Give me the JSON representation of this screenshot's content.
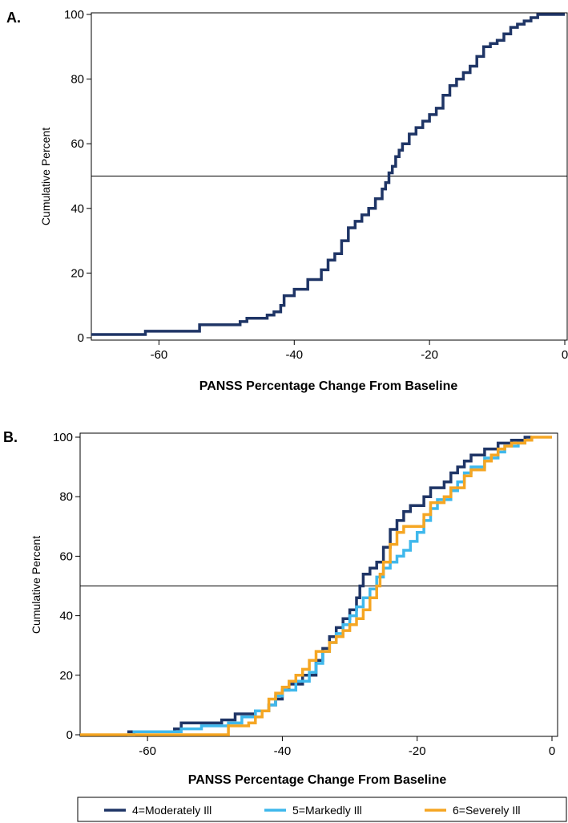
{
  "chart_data": [
    {
      "panel_label": "A.",
      "type": "line",
      "step": true,
      "xlabel": "PANSS Percentage Change From Baseline",
      "ylabel": "Cumulative Percent",
      "xlim": [
        -70,
        0
      ],
      "ylim": [
        0,
        100
      ],
      "xticks": [
        "-60",
        "-40",
        "-20",
        "0"
      ],
      "yticks": [
        "0",
        "20",
        "40",
        "60",
        "80",
        "100"
      ],
      "reference_line": 50,
      "grid": false,
      "series": [
        {
          "name": "",
          "color": "#1f3566",
          "points": [
            [
              -70,
              1
            ],
            [
              -62,
              1
            ],
            [
              -62,
              2
            ],
            [
              -55,
              2
            ],
            [
              -54,
              4
            ],
            [
              -50,
              4
            ],
            [
              -48,
              5
            ],
            [
              -47,
              6
            ],
            [
              -44,
              7
            ],
            [
              -43,
              8
            ],
            [
              -42,
              10
            ],
            [
              -41.5,
              13
            ],
            [
              -40,
              15
            ],
            [
              -38,
              18
            ],
            [
              -36,
              21
            ],
            [
              -35,
              24
            ],
            [
              -34,
              26
            ],
            [
              -33,
              30
            ],
            [
              -32,
              34
            ],
            [
              -31,
              36
            ],
            [
              -30,
              38
            ],
            [
              -29,
              40
            ],
            [
              -28,
              43
            ],
            [
              -27,
              46
            ],
            [
              -26.5,
              48
            ],
            [
              -26,
              51
            ],
            [
              -25.5,
              53
            ],
            [
              -25,
              56
            ],
            [
              -24.5,
              58
            ],
            [
              -24,
              60
            ],
            [
              -23,
              63
            ],
            [
              -22,
              65
            ],
            [
              -21,
              67
            ],
            [
              -20,
              69
            ],
            [
              -19,
              71
            ],
            [
              -18,
              75
            ],
            [
              -17,
              78
            ],
            [
              -16,
              80
            ],
            [
              -15,
              82
            ],
            [
              -14,
              84
            ],
            [
              -13,
              87
            ],
            [
              -12,
              90
            ],
            [
              -11,
              91
            ],
            [
              -10,
              92
            ],
            [
              -9,
              94
            ],
            [
              -8,
              96
            ],
            [
              -7,
              97
            ],
            [
              -6,
              98
            ],
            [
              -5,
              99
            ],
            [
              -4,
              100
            ],
            [
              0,
              100
            ]
          ]
        }
      ]
    },
    {
      "panel_label": "B.",
      "type": "line",
      "step": true,
      "xlabel": "PANSS Percentage Change From Baseline",
      "ylabel": "Cumulative Percent",
      "xlim": [
        -70,
        1
      ],
      "ylim": [
        0,
        100
      ],
      "xticks": [
        "-60",
        "-40",
        "-20",
        "0"
      ],
      "yticks": [
        "0",
        "20",
        "40",
        "60",
        "80",
        "100"
      ],
      "reference_line": 50,
      "grid": false,
      "legend": "bottom",
      "series": [
        {
          "name": "4=Moderately Ill",
          "color": "#1f3566",
          "points": [
            [
              -63,
              1
            ],
            [
              -56,
              2
            ],
            [
              -55,
              4
            ],
            [
              -50,
              4
            ],
            [
              -49,
              5
            ],
            [
              -47,
              7
            ],
            [
              -44,
              8
            ],
            [
              -42,
              10
            ],
            [
              -41,
              12
            ],
            [
              -40,
              15
            ],
            [
              -39,
              17
            ],
            [
              -37,
              20
            ],
            [
              -35,
              25
            ],
            [
              -34,
              29
            ],
            [
              -33,
              33
            ],
            [
              -32,
              36
            ],
            [
              -31,
              39
            ],
            [
              -30,
              42
            ],
            [
              -29,
              46
            ],
            [
              -28.5,
              50
            ],
            [
              -28,
              54
            ],
            [
              -27,
              56
            ],
            [
              -26,
              58
            ],
            [
              -25,
              63
            ],
            [
              -24,
              69
            ],
            [
              -23,
              72
            ],
            [
              -22,
              75
            ],
            [
              -21,
              77
            ],
            [
              -19,
              80
            ],
            [
              -18,
              83
            ],
            [
              -16,
              85
            ],
            [
              -15,
              88
            ],
            [
              -14,
              90
            ],
            [
              -13,
              92
            ],
            [
              -12,
              94
            ],
            [
              -10,
              96
            ],
            [
              -8,
              98
            ],
            [
              -6,
              99
            ],
            [
              -4,
              100
            ],
            [
              -3,
              100
            ]
          ]
        },
        {
          "name": "5=Markedly Ill",
          "color": "#3fb8ec",
          "points": [
            [
              -63,
              0
            ],
            [
              -62,
              1
            ],
            [
              -55,
              2
            ],
            [
              -52,
              3
            ],
            [
              -48,
              4
            ],
            [
              -46,
              6
            ],
            [
              -44,
              8
            ],
            [
              -42,
              10
            ],
            [
              -41,
              13
            ],
            [
              -40,
              15
            ],
            [
              -38,
              18
            ],
            [
              -36,
              21
            ],
            [
              -35,
              24
            ],
            [
              -34,
              28
            ],
            [
              -33,
              31
            ],
            [
              -32,
              34
            ],
            [
              -31,
              37
            ],
            [
              -30,
              40
            ],
            [
              -29,
              43
            ],
            [
              -28,
              46
            ],
            [
              -27,
              49
            ],
            [
              -26,
              53
            ],
            [
              -25,
              56
            ],
            [
              -24,
              58
            ],
            [
              -23,
              60
            ],
            [
              -22,
              62
            ],
            [
              -21,
              65
            ],
            [
              -20,
              68
            ],
            [
              -19,
              72
            ],
            [
              -18,
              76
            ],
            [
              -17,
              79
            ],
            [
              -15,
              82
            ],
            [
              -14,
              85
            ],
            [
              -13,
              88
            ],
            [
              -12,
              90
            ],
            [
              -10,
              93
            ],
            [
              -8,
              95
            ],
            [
              -7,
              97
            ],
            [
              -5,
              98
            ],
            [
              -4,
              99
            ],
            [
              -3,
              100
            ]
          ]
        },
        {
          "name": "6=Severely Ill",
          "color": "#f5a623",
          "points": [
            [
              -70,
              0
            ],
            [
              -49,
              0
            ],
            [
              -48,
              3
            ],
            [
              -45,
              4
            ],
            [
              -44,
              6
            ],
            [
              -43,
              8
            ],
            [
              -42,
              12
            ],
            [
              -41,
              14
            ],
            [
              -40,
              16
            ],
            [
              -39,
              18
            ],
            [
              -38,
              20
            ],
            [
              -37,
              22
            ],
            [
              -36,
              25
            ],
            [
              -35,
              28
            ],
            [
              -33,
              31
            ],
            [
              -32,
              33
            ],
            [
              -31,
              35
            ],
            [
              -30,
              37
            ],
            [
              -29,
              39
            ],
            [
              -28,
              42
            ],
            [
              -27,
              46
            ],
            [
              -26,
              50
            ],
            [
              -25.5,
              54
            ],
            [
              -25,
              58
            ],
            [
              -24,
              64
            ],
            [
              -23,
              68
            ],
            [
              -22,
              70
            ],
            [
              -20,
              70
            ],
            [
              -19,
              74
            ],
            [
              -18,
              78
            ],
            [
              -16,
              80
            ],
            [
              -15,
              83
            ],
            [
              -13,
              87
            ],
            [
              -12,
              89
            ],
            [
              -10,
              92
            ],
            [
              -9,
              94
            ],
            [
              -8,
              96
            ],
            [
              -7,
              97
            ],
            [
              -6,
              98
            ],
            [
              -4,
              99
            ],
            [
              -3,
              100
            ],
            [
              0,
              100
            ]
          ]
        }
      ]
    }
  ]
}
